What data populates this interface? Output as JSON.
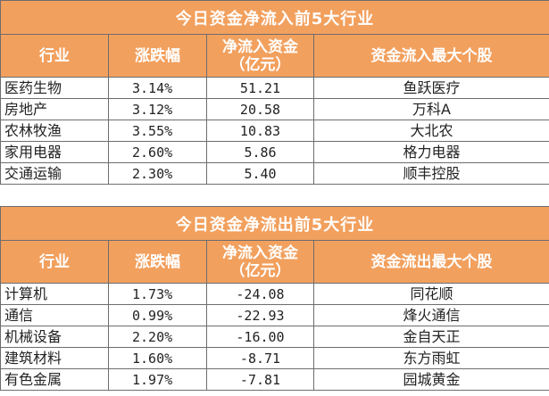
{
  "inflow": {
    "title": "今日资金净流入前5大行业",
    "headers": {
      "industry": "行业",
      "change": "涨跌幅",
      "flow_line1": "净流入资金",
      "flow_line2": "（亿元）",
      "stock": "资金流入最大个股"
    },
    "rows": [
      {
        "industry": "医药生物",
        "change": "3.14%",
        "flow": "51.21",
        "stock": "鱼跃医疗"
      },
      {
        "industry": "房地产",
        "change": "3.12%",
        "flow": "20.58",
        "stock": "万科A"
      },
      {
        "industry": "农林牧渔",
        "change": "3.55%",
        "flow": "10.83",
        "stock": "大北农"
      },
      {
        "industry": "家用电器",
        "change": "2.60%",
        "flow": "5.86",
        "stock": "格力电器"
      },
      {
        "industry": "交通运输",
        "change": "2.30%",
        "flow": "5.40",
        "stock": "顺丰控股"
      }
    ]
  },
  "outflow": {
    "title": "今日资金净流出前5大行业",
    "headers": {
      "industry": "行业",
      "change": "涨跌幅",
      "flow_line1": "净流入资金",
      "flow_line2": "（亿元）",
      "stock": "资金流出最大个股"
    },
    "rows": [
      {
        "industry": "计算机",
        "change": "1.73%",
        "flow": "-24.08",
        "stock": "同花顺"
      },
      {
        "industry": "通信",
        "change": "0.99%",
        "flow": "-22.93",
        "stock": "烽火通信"
      },
      {
        "industry": "机械设备",
        "change": "2.20%",
        "flow": "-16.00",
        "stock": "金自天正"
      },
      {
        "industry": "建筑材料",
        "change": "1.60%",
        "flow": "-8.71",
        "stock": "东方雨虹"
      },
      {
        "industry": "有色金属",
        "change": "1.97%",
        "flow": "-7.81",
        "stock": "园城黄金"
      }
    ]
  },
  "colors": {
    "header_bg": "#f2a05e",
    "header_text": "#ffffff",
    "border": "#6d6d6d"
  }
}
